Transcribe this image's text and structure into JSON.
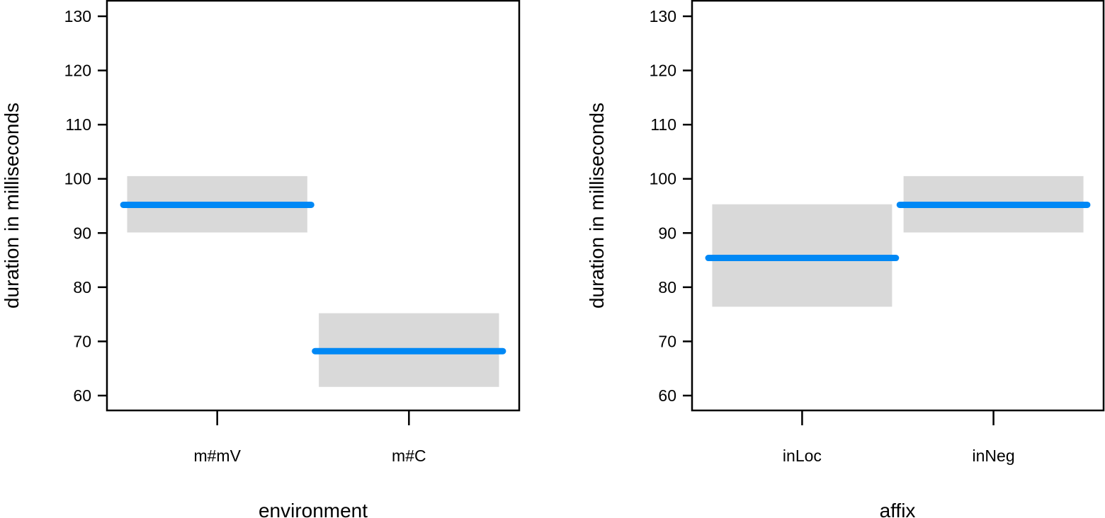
{
  "colors": {
    "line": "#0088f5",
    "band": "#d9d9d9",
    "frame": "#000000"
  },
  "chart_data": [
    {
      "type": "effect",
      "xlabel": "environment",
      "ylabel": "duration in milliseconds",
      "ylim": [
        57,
        132
      ],
      "yticks": [
        60,
        70,
        80,
        90,
        100,
        110,
        120,
        130
      ],
      "categories": [
        "m#mV",
        "m#C"
      ],
      "estimate": [
        95.2,
        68.2
      ],
      "lower": [
        90.1,
        61.6
      ],
      "upper": [
        100.5,
        75.2
      ],
      "grid": false
    },
    {
      "type": "effect",
      "xlabel": "affix",
      "ylabel": "duration in milliseconds",
      "ylim": [
        57,
        132
      ],
      "yticks": [
        60,
        70,
        80,
        90,
        100,
        110,
        120,
        130
      ],
      "categories": [
        "inLoc",
        "inNeg"
      ],
      "estimate": [
        85.4,
        95.2
      ],
      "lower": [
        76.4,
        90.1
      ],
      "upper": [
        95.3,
        100.5
      ],
      "grid": false
    }
  ]
}
